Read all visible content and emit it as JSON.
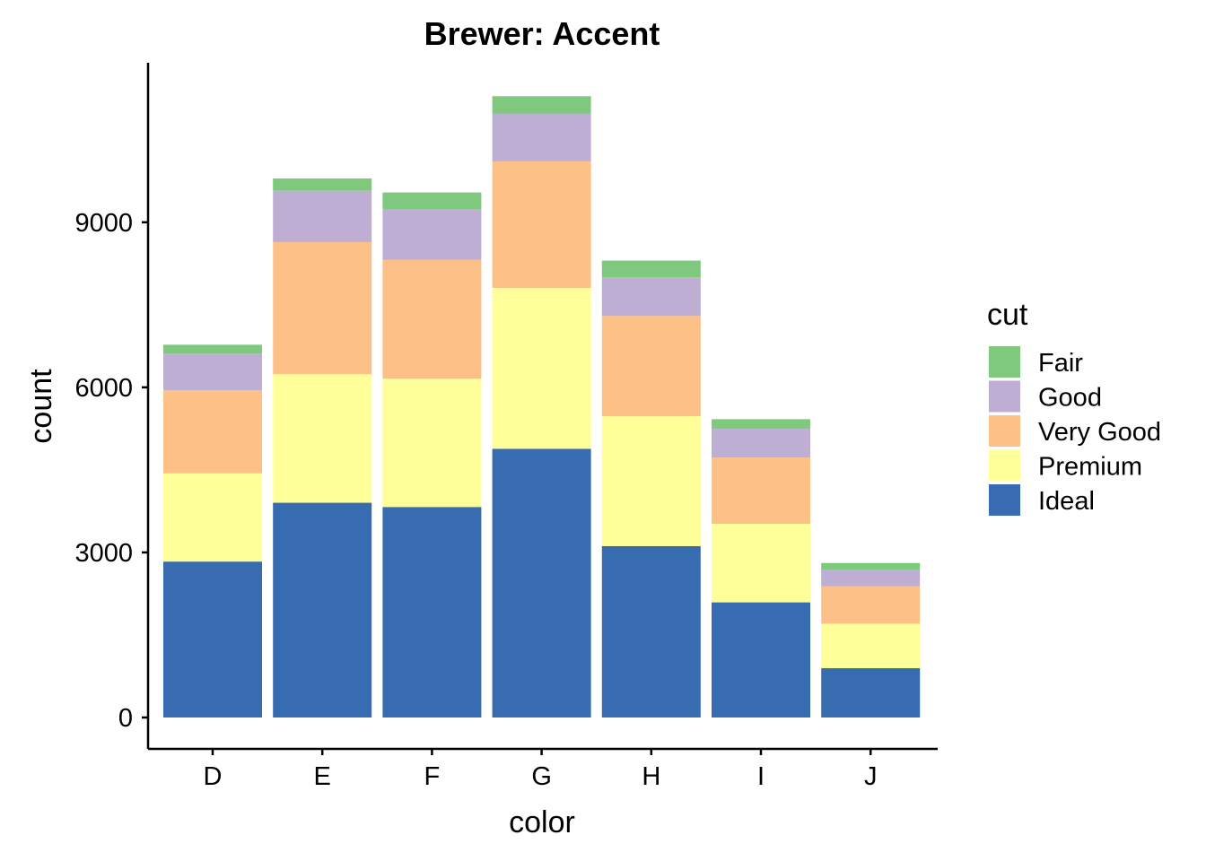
{
  "chart_data": {
    "type": "bar",
    "stacked": true,
    "title": "Brewer: Accent",
    "xlabel": "color",
    "ylabel": "count",
    "categories": [
      "D",
      "E",
      "F",
      "G",
      "H",
      "I",
      "J"
    ],
    "ylim": [
      0,
      11300
    ],
    "yticks": [
      0,
      3000,
      6000,
      9000
    ],
    "series": [
      {
        "name": "Fair",
        "color": "#7FC97F",
        "values": [
          163,
          224,
          312,
          314,
          303,
          175,
          119
        ]
      },
      {
        "name": "Good",
        "color": "#BEAED4",
        "values": [
          662,
          933,
          909,
          871,
          702,
          522,
          307
        ]
      },
      {
        "name": "Very Good",
        "color": "#FDC086",
        "values": [
          1513,
          2400,
          2164,
          2299,
          1824,
          1204,
          678
        ]
      },
      {
        "name": "Premium",
        "color": "#FFFF99",
        "values": [
          1603,
          2337,
          2331,
          2924,
          2360,
          1428,
          808
        ]
      },
      {
        "name": "Ideal",
        "color": "#386CB0",
        "values": [
          2834,
          3903,
          3826,
          4884,
          3115,
          2093,
          896
        ]
      }
    ],
    "legend": {
      "title": "cut",
      "position": "right"
    },
    "grid": false
  }
}
